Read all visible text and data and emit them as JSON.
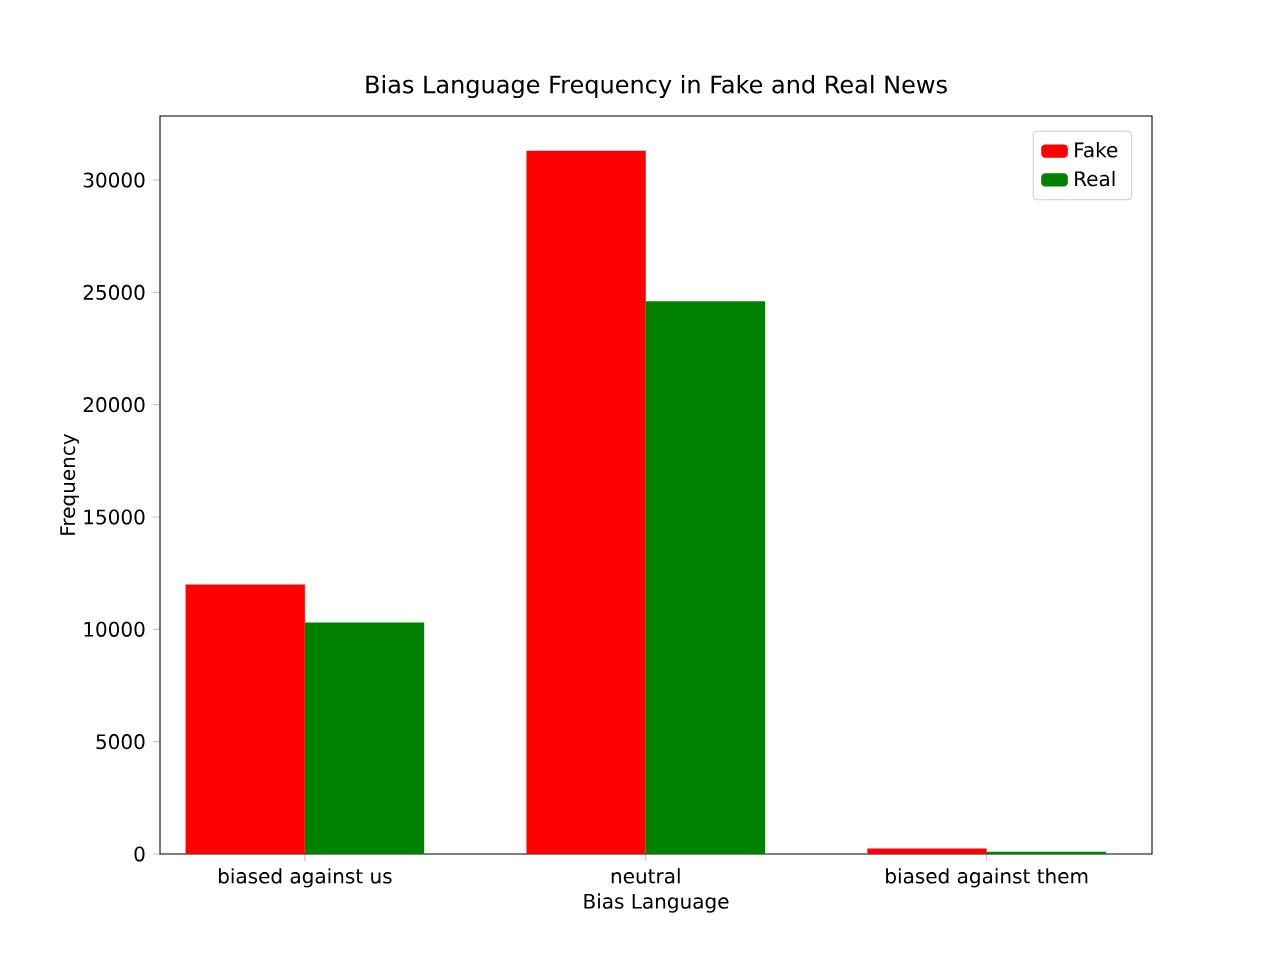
{
  "chart_data": {
    "type": "bar",
    "title": "Bias Language Frequency in Fake and Real News",
    "xlabel": "Bias Language",
    "ylabel": "Frequency",
    "categories": [
      "biased against us",
      "neutral",
      "biased against them"
    ],
    "series": [
      {
        "name": "Fake",
        "color": "#ff0000",
        "values": [
          12000,
          31300,
          250
        ]
      },
      {
        "name": "Real",
        "color": "#008000",
        "values": [
          10300,
          24600,
          100
        ]
      }
    ],
    "ylim": [
      0,
      32850
    ],
    "yticks": [
      0,
      5000,
      10000,
      15000,
      20000,
      25000,
      30000
    ],
    "grid": false,
    "legend": "top right"
  }
}
